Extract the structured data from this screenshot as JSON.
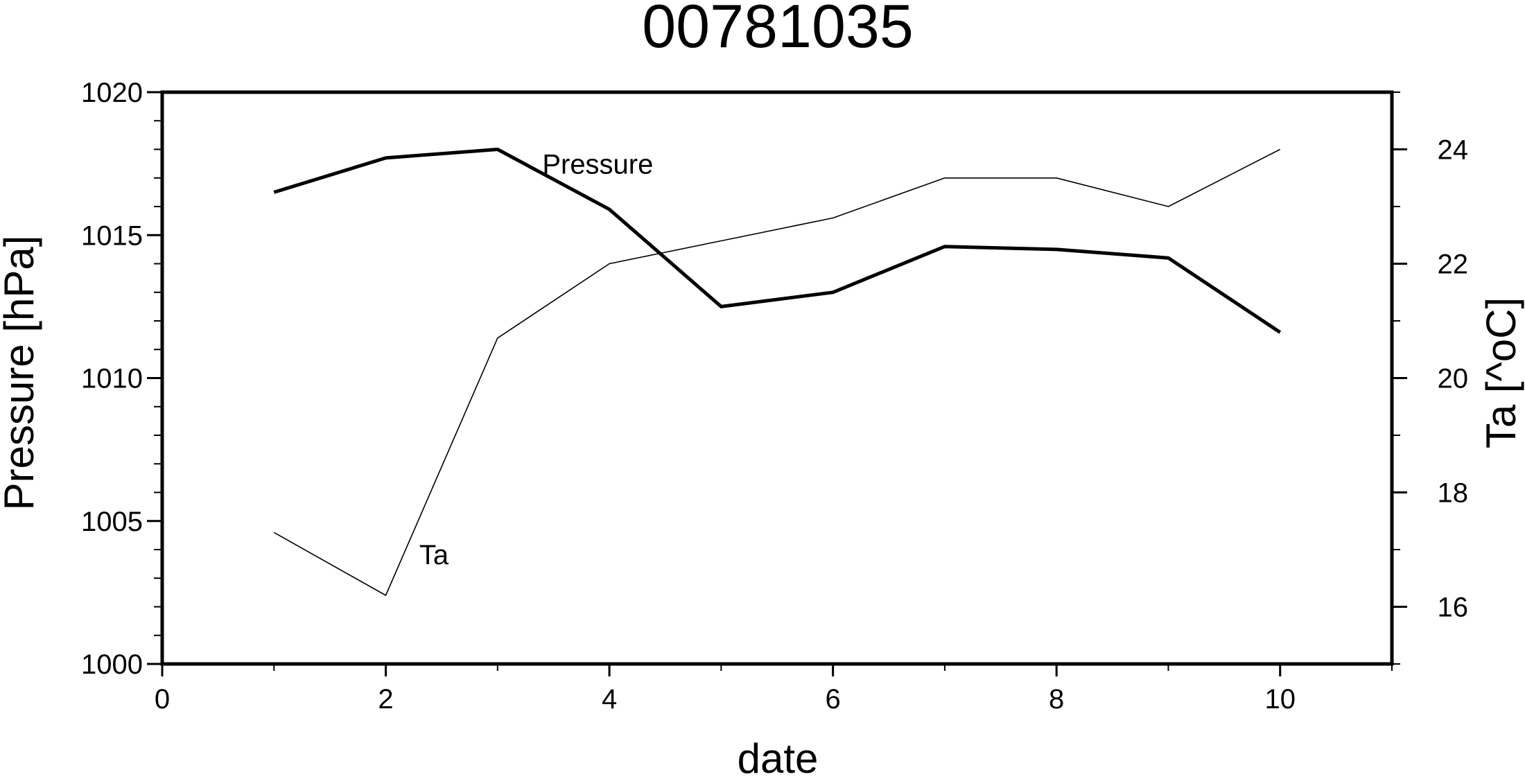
{
  "chart_data": {
    "type": "line",
    "title": "00781035",
    "xlabel": "date",
    "ylabel_left": "Pressure [hPa]",
    "ylabel_right": "Ta [^oC]",
    "xlim": [
      0,
      11
    ],
    "ylim_left": [
      1000,
      1020
    ],
    "ylim_right": [
      15,
      25
    ],
    "x_ticks": [
      "0",
      "2",
      "4",
      "6",
      "8",
      "10"
    ],
    "y_left_ticks": [
      "1000",
      "1005",
      "1010",
      "1015",
      "1020"
    ],
    "y_right_ticks": [
      "16",
      "18",
      "20",
      "22",
      "24"
    ],
    "grid": false,
    "x": [
      1,
      2,
      3,
      4,
      5,
      6,
      7,
      8,
      9,
      10
    ],
    "series": [
      {
        "name": "Pressure",
        "axis": "left",
        "style": "thick",
        "values": [
          1016.5,
          1017.7,
          1018.0,
          1015.9,
          1012.5,
          1013.0,
          1014.6,
          1014.5,
          1014.2,
          1011.6
        ]
      },
      {
        "name": "Ta",
        "axis": "right",
        "style": "thin",
        "values": [
          17.3,
          16.2,
          20.7,
          22.0,
          22.4,
          22.8,
          23.5,
          23.5,
          23.0,
          24.0
        ]
      }
    ],
    "colors": {
      "line": "#000000",
      "background": "#ffffff"
    }
  }
}
